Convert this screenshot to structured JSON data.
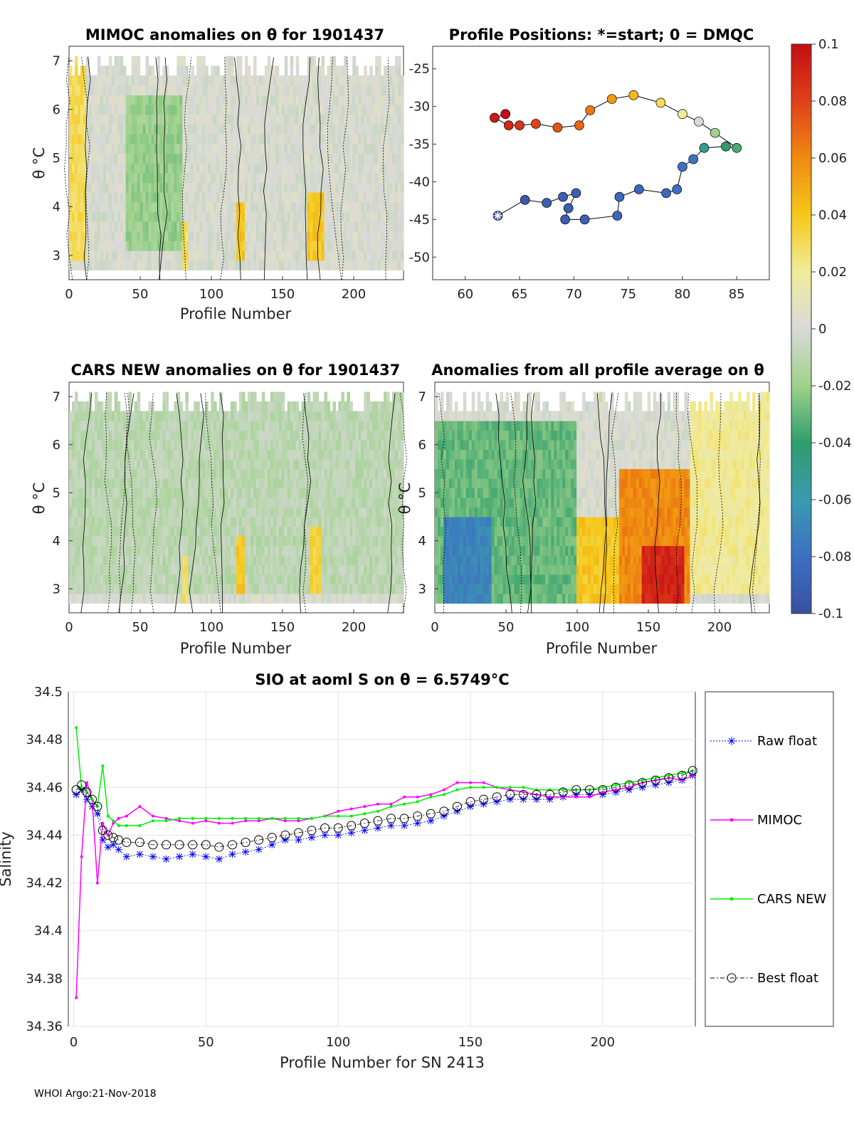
{
  "footer": "WHOI Argo:21-Nov-2018",
  "colorbar": {
    "ticks": [
      "0.1",
      "0.08",
      "0.06",
      "0.04",
      "0.02",
      "0",
      "-0.02",
      "-0.04",
      "-0.06",
      "-0.08",
      "-0.1"
    ],
    "min": -0.1,
    "max": 0.1
  },
  "chart_data": [
    {
      "type": "heatmap",
      "title": "MIMOC anomalies on θ  for 1901437",
      "xlabel": "Profile Number",
      "ylabel": "θ °C",
      "xlim": [
        0,
        235
      ],
      "ylim": [
        2.5,
        7.3
      ],
      "xticks": [
        "0",
        "50",
        "100",
        "150",
        "200"
      ],
      "yticks": [
        "3",
        "4",
        "5",
        "6",
        "7"
      ],
      "color_range": [
        -0.1,
        0.1
      ],
      "anomaly_regions": [
        {
          "x": [
            0,
            12
          ],
          "theta": [
            3,
            7
          ],
          "value": 0.03
        },
        {
          "x": [
            40,
            80
          ],
          "theta": [
            3.2,
            6.2
          ],
          "value": -0.02
        },
        {
          "x": [
            80,
            84
          ],
          "theta": [
            2.8,
            3.6
          ],
          "value": 0.03
        },
        {
          "x": [
            118,
            124
          ],
          "theta": [
            3,
            4
          ],
          "value": 0.04
        },
        {
          "x": [
            168,
            180
          ],
          "theta": [
            3,
            4.2
          ],
          "value": 0.04
        }
      ]
    },
    {
      "type": "scatter",
      "title": "Profile Positions: *=start; 0 = DMQC",
      "xlabel": "",
      "ylabel": "",
      "xlim": [
        57,
        88
      ],
      "ylim": [
        -53,
        -22
      ],
      "xticks": [
        "60",
        "65",
        "70",
        "75",
        "80",
        "85"
      ],
      "yticks": [
        "-25",
        "-30",
        "-35",
        "-40",
        "-45",
        "-50"
      ],
      "start": [
        63,
        -44.5
      ],
      "track": [
        [
          63,
          -44.5
        ],
        [
          65.5,
          -42.4
        ],
        [
          67.5,
          -42.8
        ],
        [
          69,
          -42
        ],
        [
          70.2,
          -41.5
        ],
        [
          69.5,
          -43.5
        ],
        [
          69.2,
          -45
        ],
        [
          71,
          -45
        ],
        [
          74,
          -44.5
        ],
        [
          74.2,
          -42
        ],
        [
          76,
          -41
        ],
        [
          78.5,
          -41.5
        ],
        [
          79.5,
          -41
        ],
        [
          80,
          -38
        ],
        [
          81,
          -37
        ],
        [
          82,
          -35.5
        ],
        [
          84,
          -35.3
        ],
        [
          85,
          -35.5
        ],
        [
          83,
          -33.5
        ],
        [
          81.5,
          -32
        ],
        [
          80,
          -31
        ],
        [
          78,
          -29.5
        ],
        [
          75.5,
          -28.5
        ],
        [
          73.5,
          -29
        ],
        [
          71.5,
          -30.5
        ],
        [
          70.5,
          -32.5
        ],
        [
          68.5,
          -32.8
        ],
        [
          66.5,
          -32.3
        ],
        [
          65,
          -32.5
        ],
        [
          64,
          -32.5
        ],
        [
          62.7,
          -31.5
        ],
        [
          63.7,
          -31
        ]
      ],
      "data_values": [
        -0.1,
        -0.095,
        -0.09,
        -0.09,
        -0.09,
        -0.09,
        -0.09,
        -0.09,
        -0.085,
        -0.085,
        -0.085,
        -0.085,
        -0.08,
        -0.08,
        -0.078,
        -0.05,
        -0.04,
        -0.035,
        -0.02,
        0.0,
        0.02,
        0.03,
        0.045,
        0.055,
        0.065,
        0.07,
        0.075,
        0.08,
        0.085,
        0.09,
        0.095,
        0.1
      ]
    },
    {
      "type": "heatmap",
      "title": "CARS NEW anomalies on θ for 1901437",
      "xlabel": "Profile Number",
      "ylabel": "θ °C",
      "xlim": [
        0,
        235
      ],
      "ylim": [
        2.5,
        7.3
      ],
      "xticks": [
        "0",
        "50",
        "100",
        "150",
        "200"
      ],
      "yticks": [
        "3",
        "4",
        "5",
        "6",
        "7"
      ],
      "color_range": [
        -0.1,
        0.1
      ],
      "anomaly_regions": [
        {
          "x": [
            0,
            235
          ],
          "theta": [
            3,
            7
          ],
          "value": -0.01
        },
        {
          "x": [
            80,
            84
          ],
          "theta": [
            2.8,
            3.6
          ],
          "value": 0.03
        },
        {
          "x": [
            118,
            124
          ],
          "theta": [
            3,
            4
          ],
          "value": 0.04
        },
        {
          "x": [
            170,
            178
          ],
          "theta": [
            3,
            4.2
          ],
          "value": 0.035
        }
      ]
    },
    {
      "type": "heatmap",
      "title": "Anomalies from all profile average on θ",
      "xlabel": "Profile Number",
      "ylabel": "θ °C",
      "xlim": [
        0,
        235
      ],
      "ylim": [
        2.5,
        7.3
      ],
      "xticks": [
        "0",
        "50",
        "100",
        "150",
        "200"
      ],
      "yticks": [
        "3",
        "4",
        "5",
        "6",
        "7"
      ],
      "color_range": [
        -0.1,
        0.1
      ],
      "anomaly_regions": [
        {
          "x": [
            0,
            100
          ],
          "theta": [
            2.8,
            6.5
          ],
          "value": -0.03
        },
        {
          "x": [
            5,
            40
          ],
          "theta": [
            2.8,
            4.5
          ],
          "value": -0.07
        },
        {
          "x": [
            100,
            130
          ],
          "theta": [
            2.8,
            4.5
          ],
          "value": 0.04
        },
        {
          "x": [
            130,
            180
          ],
          "theta": [
            2.8,
            5.5
          ],
          "value": 0.06
        },
        {
          "x": [
            145,
            175
          ],
          "theta": [
            2.8,
            3.8
          ],
          "value": 0.09
        },
        {
          "x": [
            180,
            235
          ],
          "theta": [
            3,
            7
          ],
          "value": 0.02
        }
      ]
    },
    {
      "type": "line",
      "title": "SIO at aoml S on θ = 6.5749°C",
      "xlabel": "Profile Number for SN 2413",
      "ylabel": "Salinity",
      "xlim": [
        -2,
        235
      ],
      "ylim": [
        34.36,
        34.5
      ],
      "xticks": [
        "0",
        "50",
        "100",
        "150",
        "200"
      ],
      "yticks": [
        "34.5",
        "34.48",
        "34.46",
        "34.44",
        "34.42",
        "34.4",
        "34.38",
        "34.36"
      ],
      "x": [
        1,
        3,
        5,
        7,
        9,
        11,
        13,
        15,
        17,
        20,
        25,
        30,
        35,
        40,
        45,
        50,
        55,
        60,
        65,
        70,
        75,
        80,
        85,
        90,
        95,
        100,
        105,
        110,
        115,
        120,
        125,
        130,
        135,
        140,
        145,
        150,
        155,
        160,
        165,
        170,
        175,
        180,
        185,
        190,
        195,
        200,
        205,
        210,
        215,
        220,
        225,
        230,
        234
      ],
      "series": [
        {
          "name": "Raw float",
          "color": "#0000ff",
          "values": [
            34.457,
            34.459,
            34.455,
            34.452,
            34.449,
            34.438,
            34.435,
            34.436,
            34.434,
            34.431,
            34.432,
            34.431,
            34.43,
            34.431,
            34.432,
            34.431,
            34.43,
            34.432,
            34.433,
            34.434,
            34.436,
            34.438,
            34.438,
            34.439,
            34.44,
            34.44,
            34.441,
            34.442,
            34.443,
            34.444,
            34.444,
            34.445,
            34.446,
            34.448,
            34.45,
            34.452,
            34.453,
            34.454,
            34.455,
            34.455,
            34.455,
            34.455,
            34.456,
            34.457,
            34.457,
            34.457,
            34.458,
            34.459,
            34.46,
            34.461,
            34.462,
            34.463,
            34.465
          ]
        },
        {
          "name": "MIMOC",
          "color": "#ff00ff",
          "values": [
            34.372,
            34.431,
            34.462,
            34.455,
            34.42,
            34.445,
            34.44,
            34.445,
            34.447,
            34.448,
            34.452,
            34.448,
            34.447,
            34.446,
            34.445,
            34.446,
            34.445,
            34.445,
            34.446,
            34.446,
            34.447,
            34.446,
            34.446,
            34.447,
            34.448,
            34.45,
            34.451,
            34.452,
            34.453,
            34.453,
            34.456,
            34.456,
            34.457,
            34.459,
            34.462,
            34.462,
            34.462,
            34.46,
            34.459,
            34.458,
            34.457,
            34.456,
            34.456,
            34.456,
            34.456,
            34.458,
            34.459,
            34.46,
            34.462,
            34.463,
            34.464,
            34.463,
            34.465
          ]
        },
        {
          "name": "CARS NEW",
          "color": "#00ee00",
          "values": [
            34.485,
            34.46,
            34.458,
            34.455,
            34.452,
            34.469,
            34.448,
            34.446,
            34.444,
            34.444,
            34.444,
            34.446,
            34.446,
            34.447,
            34.447,
            34.447,
            34.447,
            34.447,
            34.447,
            34.447,
            34.447,
            34.447,
            34.447,
            34.447,
            34.448,
            34.448,
            34.448,
            34.449,
            34.45,
            34.452,
            34.453,
            34.454,
            34.456,
            34.457,
            34.459,
            34.46,
            34.46,
            34.46,
            34.46,
            34.46,
            34.459,
            34.459,
            34.459,
            34.459,
            34.459,
            34.46,
            34.461,
            34.462,
            34.463,
            34.464,
            34.465,
            34.466,
            34.467
          ]
        },
        {
          "name": "Best float",
          "color": "#000000",
          "values": [
            34.459,
            34.461,
            34.458,
            34.455,
            34.452,
            34.442,
            34.44,
            34.439,
            34.438,
            34.437,
            34.437,
            34.436,
            34.436,
            34.436,
            34.436,
            34.436,
            34.435,
            34.436,
            34.437,
            34.438,
            34.439,
            34.44,
            34.441,
            34.442,
            34.443,
            34.443,
            34.444,
            34.445,
            34.446,
            34.447,
            34.447,
            34.448,
            34.449,
            34.45,
            34.452,
            34.454,
            34.455,
            34.456,
            34.457,
            34.457,
            34.457,
            34.457,
            34.458,
            34.459,
            34.459,
            34.459,
            34.46,
            34.461,
            34.462,
            34.463,
            34.464,
            34.465,
            34.467
          ]
        }
      ]
    }
  ]
}
